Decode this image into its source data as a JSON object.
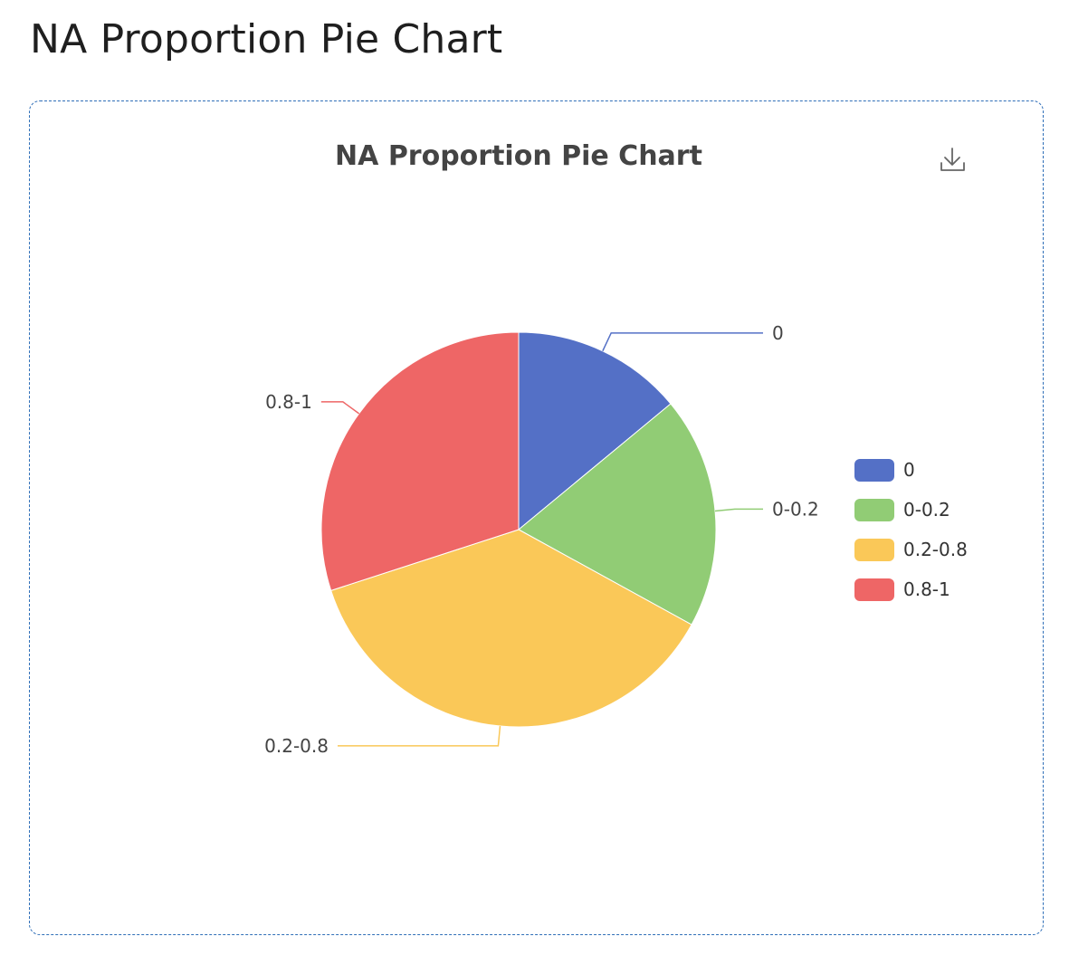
{
  "page": {
    "heading": "NA Proportion Pie Chart"
  },
  "toolbox": {
    "download_icon": "download-icon"
  },
  "chart_data": {
    "type": "pie",
    "title": "NA Proportion Pie Chart",
    "categories": [
      "0",
      "0-0.2",
      "0.2-0.8",
      "0.8-1"
    ],
    "values": [
      14,
      19,
      37,
      30
    ],
    "colors": [
      "#5470c6",
      "#91cc75",
      "#fac858",
      "#ee6666"
    ],
    "start_angle_deg": 90,
    "direction": "clockwise",
    "legend_position": "right"
  }
}
